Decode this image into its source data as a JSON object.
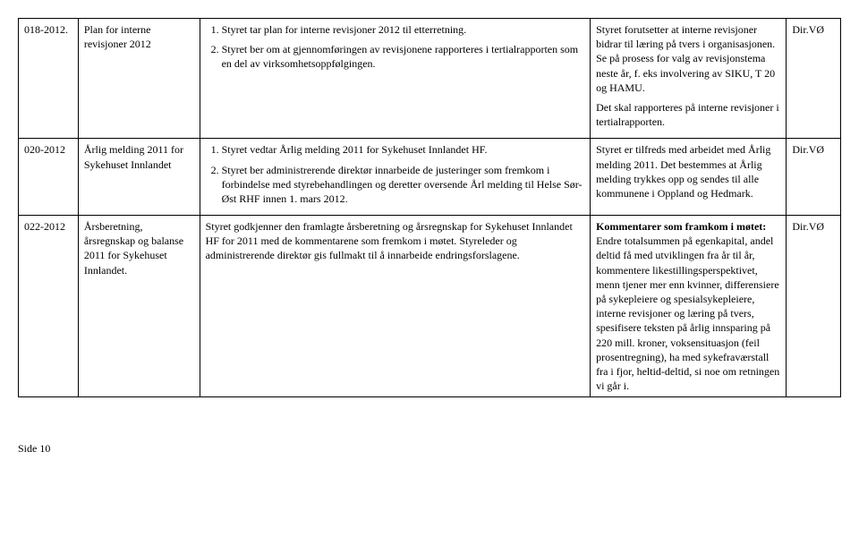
{
  "rows": [
    {
      "id": "018-2012.",
      "title": "Plan for interne revisjoner 2012",
      "decision_items": [
        "Styret tar plan for interne revisjoner 2012 til etterretning.",
        "Styret ber om at gjennomføringen av revisjonene rapporteres i tertialrapporten som en del av virksomhetsoppfølgingen."
      ],
      "comment_paras": [
        "Styret forutsetter at interne revisjoner bidrar til læring på tvers i organisasjonen. Se på prosess for valg av revisjonstema neste år, f. eks involvering av SIKU, T 20 og HAMU.",
        "Det skal rapporteres på interne revisjoner i tertialrapporten."
      ],
      "resp": "Dir.VØ"
    },
    {
      "id": "020-2012",
      "title": "Årlig melding 2011 for Sykehuset Innlandet",
      "decision_items": [
        "Styret vedtar Årlig melding 2011 for Sykehuset Innlandet HF.",
        "Styret ber administrerende direktør innarbeide de justeringer som fremkom i forbindelse med styrebehandlingen og deretter oversende Årl melding til Helse Sør-Øst RHF innen 1. mars 2012."
      ],
      "comment_paras": [
        "Styret er tilfreds med arbeidet med Årlig melding 2011. Det bestemmes at Årlig melding trykkes opp og sendes til alle kommunene i Oppland og Hedmark."
      ],
      "resp": "Dir.VØ"
    },
    {
      "id": "022-2012",
      "title": "Årsberetning, årsregnskap og balanse 2011 for Sykehuset Innlandet.",
      "decision_text": "Styret godkjenner den framlagte årsberetning og årsregnskap for Sykehuset Innlandet HF for 2011 med de kommentarene som fremkom i møtet. Styreleder og administrerende direktør gis fullmakt til å innarbeide endringsforslagene.",
      "comment_bold": "Kommentarer som framkom i møtet:",
      "comment_body": "Endre totalsummen på egenkapital, andel deltid få med utviklingen fra år til år, kommentere likestillingsperspektivet, menn tjener mer enn kvinner, differensiere på sykepleiere og spesialsykepleiere, interne revisjoner og læring på tvers, spesifisere teksten på årlig innsparing på 220 mill. kroner, voksensituasjon (feil prosentregning), ha med sykefraværstall fra i fjor, heltid-deltid, si noe om retningen vi går i.",
      "resp": "Dir.VØ"
    }
  ],
  "footer": "Side 10"
}
